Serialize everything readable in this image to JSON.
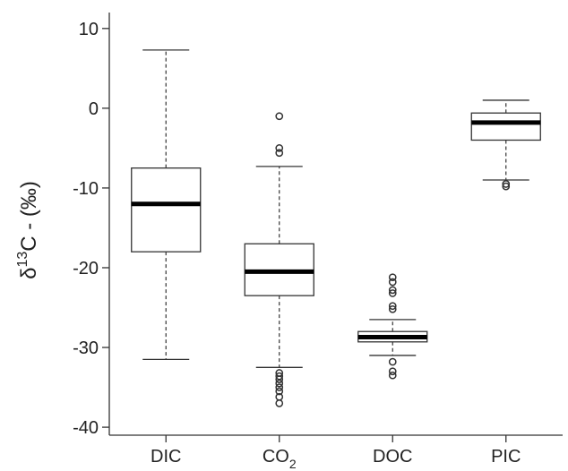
{
  "chart_data": {
    "type": "box",
    "ylabel": {
      "delta": "δ",
      "superscript": "13",
      "rest": "C - (‰)"
    },
    "ylim": [
      -41,
      12
    ],
    "yticks": [
      10,
      0,
      -10,
      -20,
      -30,
      -40
    ],
    "yticklabels": [
      "10",
      "0",
      "-10",
      "-20",
      "-30",
      "-40"
    ],
    "grid": false,
    "categories": [
      {
        "label": "DIC",
        "subscript": ""
      },
      {
        "label": "CO",
        "subscript": "2"
      },
      {
        "label": "DOC",
        "subscript": ""
      },
      {
        "label": "PIC",
        "subscript": ""
      }
    ],
    "boxes": [
      {
        "whisker_low": -31.5,
        "q1": -18.0,
        "median": -12.0,
        "q3": -7.5,
        "whisker_high": 7.3,
        "outliers": []
      },
      {
        "whisker_low": -32.5,
        "q1": -23.5,
        "median": -20.5,
        "q3": -17.0,
        "whisker_high": -7.3,
        "outliers": [
          -1.0,
          -5.0,
          -5.6,
          -33.2,
          -33.6,
          -34.0,
          -34.5,
          -35.0,
          -35.5,
          -36.2,
          -37.0
        ]
      },
      {
        "whisker_low": -31.0,
        "q1": -29.3,
        "median": -28.7,
        "q3": -28.0,
        "whisker_high": -26.5,
        "outliers": [
          -21.2,
          -21.8,
          -22.8,
          -23.2,
          -24.8,
          -25.2,
          -31.8,
          -33.0,
          -33.5
        ]
      },
      {
        "whisker_low": -9.0,
        "q1": -4.0,
        "median": -1.8,
        "q3": -0.6,
        "whisker_high": 1.0,
        "outliers": [
          -9.5,
          -9.8
        ]
      }
    ]
  }
}
